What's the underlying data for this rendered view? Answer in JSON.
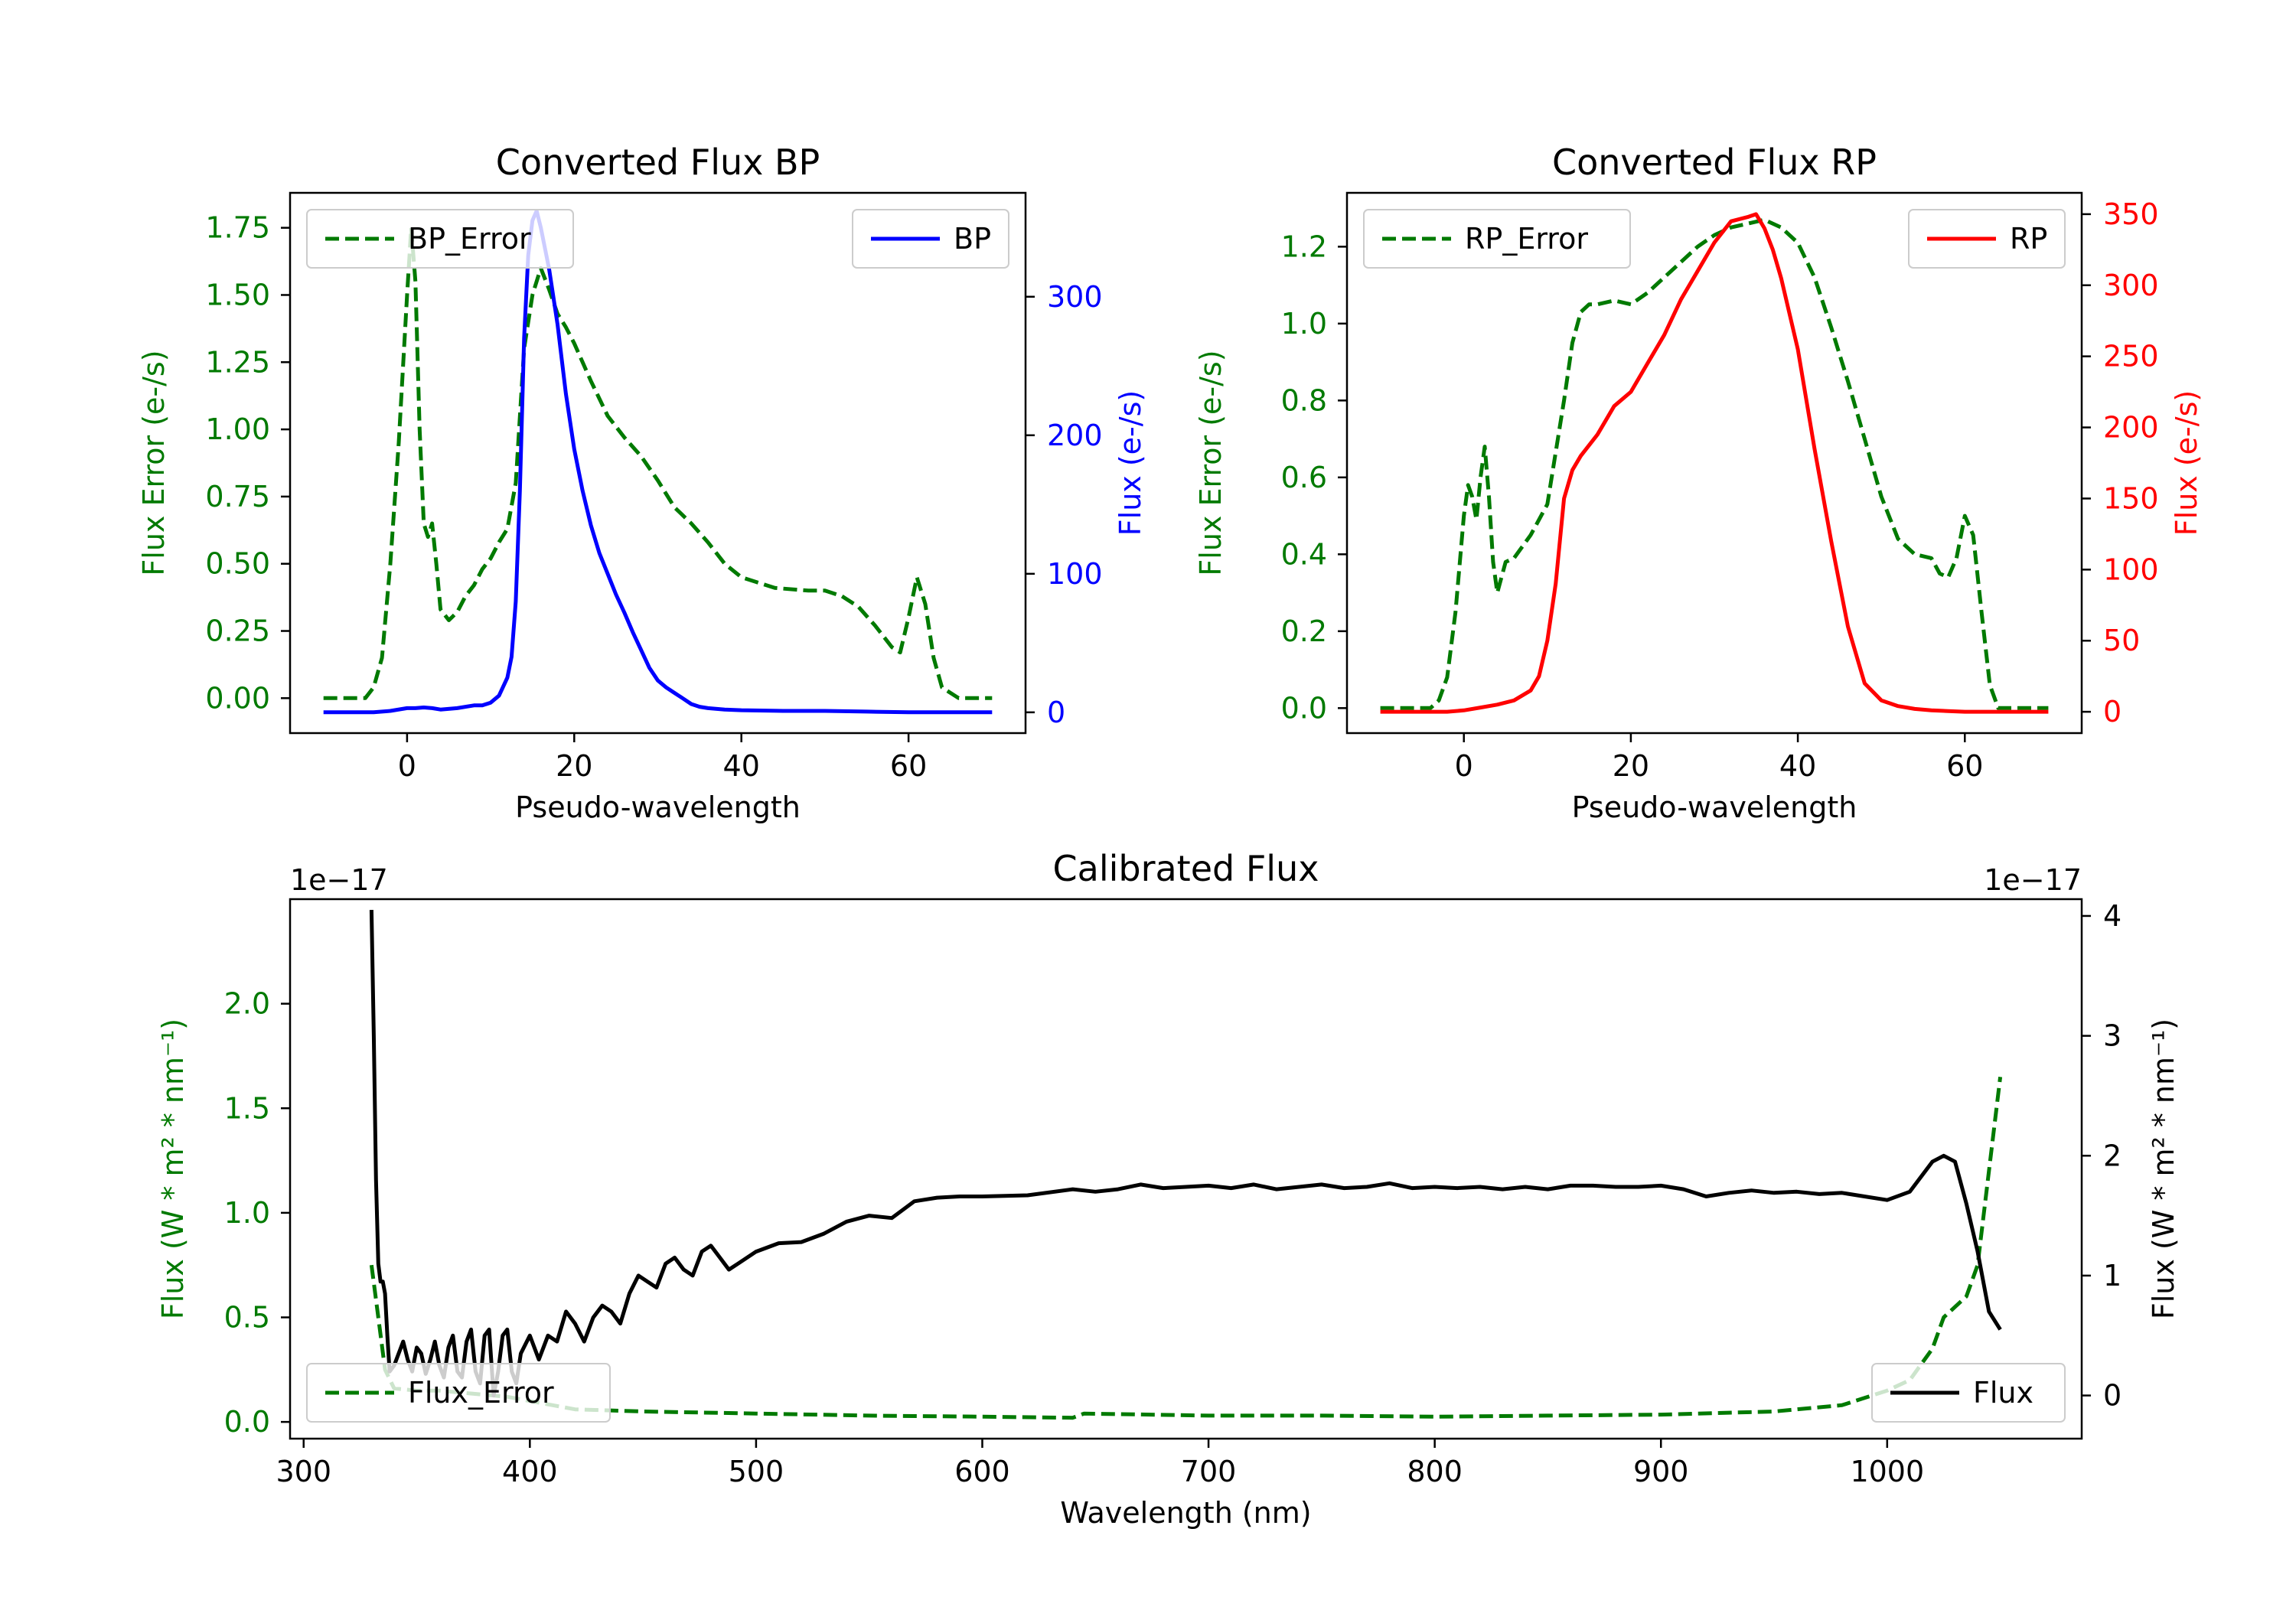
{
  "colors": {
    "bp": "#0000ff",
    "rp": "#ff0000",
    "error": "#007a00",
    "flux": "#000000",
    "axis": "#000000",
    "legend_border": "#cccccc"
  },
  "chart_data": [
    {
      "id": "bp",
      "type": "line",
      "title": "Converted Flux BP",
      "xlabel": "Pseudo-wavelength",
      "ylabel_left": "Flux Error (e-/s)",
      "ylabel_right": "Flux (e-/s)",
      "xlim": [
        -14,
        74
      ],
      "ylim_left": [
        -0.13,
        1.88
      ],
      "ylim_right": [
        -15,
        375
      ],
      "xticks": [
        0,
        20,
        40,
        60
      ],
      "xtick_labels": [
        "0",
        "20",
        "40",
        "60"
      ],
      "yticks_left": [
        0,
        0.25,
        0.5,
        0.75,
        1.0,
        1.25,
        1.5,
        1.75
      ],
      "ytick_labels_left": [
        "0.00",
        "0.25",
        "0.50",
        "0.75",
        "1.00",
        "1.25",
        "1.50",
        "1.75"
      ],
      "yticks_right": [
        0,
        100,
        200,
        300
      ],
      "ytick_labels_right": [
        "0",
        "100",
        "200",
        "300"
      ],
      "legend_left": "top-left",
      "legend_right": "top-right",
      "series": [
        {
          "name": "BP_Error",
          "axis": "left",
          "style": "dashed",
          "color": "#007a00",
          "x": [
            -10,
            -5,
            -4,
            -3,
            -2,
            -1,
            0,
            0.5,
            1,
            1.5,
            2,
            2.5,
            3,
            3.5,
            4,
            5,
            6,
            7,
            8,
            9,
            10,
            11,
            12,
            13,
            14,
            15,
            16,
            17,
            18,
            19,
            20,
            22,
            24,
            26,
            28,
            30,
            32,
            34,
            36,
            38,
            40,
            44,
            48,
            50,
            52,
            54,
            56,
            57,
            58,
            59,
            60,
            61,
            62,
            63,
            64,
            66,
            70
          ],
          "y": [
            0,
            0,
            0.04,
            0.15,
            0.5,
            0.95,
            1.5,
            1.75,
            1.55,
            1.0,
            0.65,
            0.6,
            0.65,
            0.5,
            0.33,
            0.29,
            0.32,
            0.38,
            0.42,
            0.48,
            0.52,
            0.58,
            0.63,
            0.8,
            1.3,
            1.5,
            1.6,
            1.52,
            1.43,
            1.38,
            1.32,
            1.18,
            1.05,
            0.97,
            0.9,
            0.81,
            0.71,
            0.65,
            0.58,
            0.5,
            0.45,
            0.41,
            0.4,
            0.4,
            0.38,
            0.34,
            0.27,
            0.23,
            0.19,
            0.17,
            0.3,
            0.45,
            0.35,
            0.15,
            0.04,
            0,
            0
          ]
        },
        {
          "name": "BP",
          "axis": "right",
          "style": "solid",
          "color": "#0000ff",
          "x": [
            -10,
            -4,
            -2,
            0,
            1,
            2,
            3,
            4,
            6,
            8,
            9,
            10,
            11,
            12,
            12.5,
            13,
            13.5,
            14,
            14.5,
            15,
            15.5,
            16,
            17,
            18,
            19,
            20,
            21,
            22,
            23,
            24,
            25,
            26,
            27,
            28,
            29,
            30,
            31,
            32,
            33,
            34,
            35,
            36,
            38,
            40,
            45,
            50,
            55,
            60,
            65,
            70
          ],
          "y": [
            0,
            0,
            1,
            3,
            3,
            3.5,
            3,
            2,
            3,
            5,
            5,
            7,
            12,
            25,
            40,
            80,
            160,
            270,
            330,
            355,
            362,
            350,
            320,
            280,
            230,
            190,
            160,
            135,
            115,
            100,
            85,
            72,
            58,
            45,
            32,
            23,
            18,
            14,
            10,
            6,
            4,
            3,
            2,
            1.5,
            1,
            1,
            0.5,
            0,
            0,
            0
          ]
        }
      ]
    },
    {
      "id": "rp",
      "type": "line",
      "title": "Converted Flux RP",
      "xlabel": "Pseudo-wavelength",
      "ylabel_left": "Flux Error (e-/s)",
      "ylabel_right": "Flux (e-/s)",
      "xlim": [
        -14,
        74
      ],
      "ylim_left": [
        -0.065,
        1.34
      ],
      "ylim_right": [
        -15,
        365
      ],
      "xticks": [
        0,
        20,
        40,
        60
      ],
      "xtick_labels": [
        "0",
        "20",
        "40",
        "60"
      ],
      "yticks_left": [
        0,
        0.2,
        0.4,
        0.6,
        0.8,
        1.0,
        1.2
      ],
      "ytick_labels_left": [
        "0.0",
        "0.2",
        "0.4",
        "0.6",
        "0.8",
        "1.0",
        "1.2"
      ],
      "yticks_right": [
        0,
        50,
        100,
        150,
        200,
        250,
        300,
        350
      ],
      "ytick_labels_right": [
        "0",
        "50",
        "100",
        "150",
        "200",
        "250",
        "300",
        "350"
      ],
      "legend_left": "top-left",
      "legend_right": "top-right",
      "series": [
        {
          "name": "RP_Error",
          "axis": "left",
          "style": "dashed",
          "color": "#007a00",
          "x": [
            -10,
            -4,
            -3,
            -2,
            -1,
            0,
            0.5,
            1,
            1.5,
            2,
            2.5,
            3,
            3.5,
            4,
            5,
            6,
            7,
            8,
            10,
            12,
            13,
            14,
            15,
            16,
            18,
            20,
            22,
            24,
            26,
            28,
            30,
            32,
            34,
            36,
            38,
            40,
            42,
            44,
            46,
            48,
            50,
            52,
            54,
            56,
            57,
            58,
            59,
            60,
            61,
            62,
            63,
            64,
            66,
            70
          ],
          "y": [
            0,
            0,
            0.02,
            0.08,
            0.25,
            0.5,
            0.58,
            0.55,
            0.49,
            0.6,
            0.68,
            0.55,
            0.38,
            0.3,
            0.38,
            0.39,
            0.42,
            0.45,
            0.53,
            0.8,
            0.95,
            1.03,
            1.05,
            1.05,
            1.06,
            1.05,
            1.08,
            1.12,
            1.16,
            1.2,
            1.23,
            1.25,
            1.26,
            1.27,
            1.25,
            1.21,
            1.12,
            0.99,
            0.85,
            0.7,
            0.55,
            0.44,
            0.4,
            0.39,
            0.35,
            0.34,
            0.39,
            0.5,
            0.45,
            0.25,
            0.06,
            0,
            0,
            0
          ]
        },
        {
          "name": "RP",
          "axis": "right",
          "style": "solid",
          "color": "#ff0000",
          "x": [
            -10,
            -2,
            0,
            2,
            4,
            6,
            8,
            9,
            10,
            11,
            12,
            13,
            14,
            16,
            18,
            20,
            22,
            24,
            26,
            28,
            30,
            32,
            34,
            35,
            36,
            37,
            38,
            39,
            40,
            42,
            44,
            46,
            48,
            50,
            52,
            54,
            56,
            58,
            60,
            62,
            65,
            70
          ],
          "y": [
            0,
            0,
            1,
            3,
            5,
            8,
            15,
            25,
            50,
            90,
            150,
            170,
            180,
            195,
            215,
            225,
            245,
            265,
            290,
            310,
            330,
            345,
            348,
            350,
            340,
            325,
            305,
            280,
            255,
            185,
            120,
            60,
            20,
            8,
            4,
            2,
            1,
            0.5,
            0,
            0,
            0,
            0
          ]
        }
      ]
    },
    {
      "id": "calibrated",
      "type": "line",
      "title": "Calibrated Flux",
      "xlabel": "Wavelength (nm)",
      "ylabel_left": "Flux (W * m² * nm⁻¹)",
      "ylabel_right": "Flux (W * m² * nm⁻¹)",
      "offset_left": "1e−17",
      "offset_right": "1e−17",
      "xlim": [
        294,
        1086
      ],
      "ylim_left": [
        -0.08,
        2.5
      ],
      "ylim_right": [
        -0.36,
        4.14
      ],
      "xticks": [
        300,
        400,
        500,
        600,
        700,
        800,
        900,
        1000
      ],
      "xtick_labels": [
        "300",
        "400",
        "500",
        "600",
        "700",
        "800",
        "900",
        "1000"
      ],
      "yticks_left": [
        0,
        0.5,
        1.0,
        1.5,
        2.0
      ],
      "ytick_labels_left": [
        "0.0",
        "0.5",
        "1.0",
        "1.5",
        "2.0"
      ],
      "yticks_right": [
        0,
        1,
        2,
        3,
        4
      ],
      "ytick_labels_right": [
        "0",
        "1",
        "2",
        "3",
        "4"
      ],
      "legend_left": "bottom-left",
      "legend_right": "bottom-right",
      "series": [
        {
          "name": "Flux_Error",
          "axis": "left",
          "style": "dashed",
          "color": "#007a00",
          "x": [
            330,
            333,
            336,
            340,
            350,
            360,
            370,
            380,
            390,
            400,
            420,
            450,
            500,
            550,
            600,
            640,
            645,
            700,
            750,
            800,
            850,
            900,
            950,
            980,
            1000,
            1010,
            1020,
            1025,
            1030,
            1035,
            1040,
            1045,
            1050
          ],
          "y": [
            0.75,
            0.5,
            0.25,
            0.16,
            0.15,
            0.15,
            0.14,
            0.13,
            0.12,
            0.1,
            0.06,
            0.05,
            0.04,
            0.03,
            0.025,
            0.02,
            0.04,
            0.03,
            0.03,
            0.025,
            0.03,
            0.035,
            0.05,
            0.08,
            0.15,
            0.2,
            0.35,
            0.5,
            0.55,
            0.6,
            0.75,
            1.2,
            1.65
          ]
        },
        {
          "name": "Flux",
          "axis": "right",
          "style": "solid",
          "color": "#000000",
          "x": [
            330,
            331,
            332,
            333,
            334,
            335,
            336,
            337,
            338,
            340,
            342,
            344,
            346,
            348,
            350,
            352,
            354,
            356,
            358,
            360,
            362,
            364,
            366,
            368,
            370,
            372,
            374,
            376,
            378,
            380,
            382,
            384,
            386,
            388,
            390,
            392,
            394,
            396,
            400,
            404,
            408,
            412,
            416,
            420,
            424,
            428,
            432,
            436,
            440,
            444,
            448,
            452,
            456,
            460,
            464,
            468,
            472,
            476,
            480,
            484,
            488,
            492,
            496,
            500,
            510,
            520,
            530,
            540,
            550,
            560,
            570,
            580,
            590,
            600,
            620,
            640,
            650,
            660,
            670,
            680,
            690,
            700,
            710,
            720,
            730,
            740,
            750,
            760,
            770,
            780,
            790,
            800,
            810,
            820,
            830,
            840,
            850,
            860,
            870,
            880,
            890,
            900,
            910,
            920,
            930,
            940,
            950,
            960,
            970,
            980,
            990,
            1000,
            1010,
            1020,
            1025,
            1030,
            1035,
            1040,
            1045,
            1050
          ],
          "y": [
            4.05,
            3.0,
            1.8,
            1.1,
            0.95,
            0.95,
            0.85,
            0.5,
            0.2,
            0.25,
            0.35,
            0.45,
            0.3,
            0.2,
            0.4,
            0.35,
            0.18,
            0.3,
            0.45,
            0.25,
            0.15,
            0.4,
            0.5,
            0.2,
            0.15,
            0.45,
            0.55,
            0.2,
            0.1,
            0.5,
            0.55,
            0.0,
            0.2,
            0.5,
            0.55,
            0.2,
            0.1,
            0.35,
            0.5,
            0.3,
            0.5,
            0.45,
            0.7,
            0.6,
            0.45,
            0.65,
            0.75,
            0.7,
            0.6,
            0.85,
            1.0,
            0.95,
            0.9,
            1.1,
            1.15,
            1.05,
            1.0,
            1.2,
            1.25,
            1.15,
            1.05,
            1.1,
            1.15,
            1.2,
            1.27,
            1.28,
            1.35,
            1.45,
            1.5,
            1.48,
            1.62,
            1.65,
            1.66,
            1.66,
            1.67,
            1.72,
            1.7,
            1.72,
            1.76,
            1.73,
            1.74,
            1.75,
            1.73,
            1.76,
            1.72,
            1.74,
            1.76,
            1.73,
            1.74,
            1.77,
            1.73,
            1.74,
            1.73,
            1.74,
            1.72,
            1.74,
            1.72,
            1.75,
            1.75,
            1.74,
            1.74,
            1.75,
            1.72,
            1.66,
            1.69,
            1.71,
            1.69,
            1.7,
            1.68,
            1.69,
            1.66,
            1.63,
            1.7,
            1.95,
            2.0,
            1.95,
            1.6,
            1.2,
            0.7,
            0.55
          ]
        }
      ]
    }
  ]
}
